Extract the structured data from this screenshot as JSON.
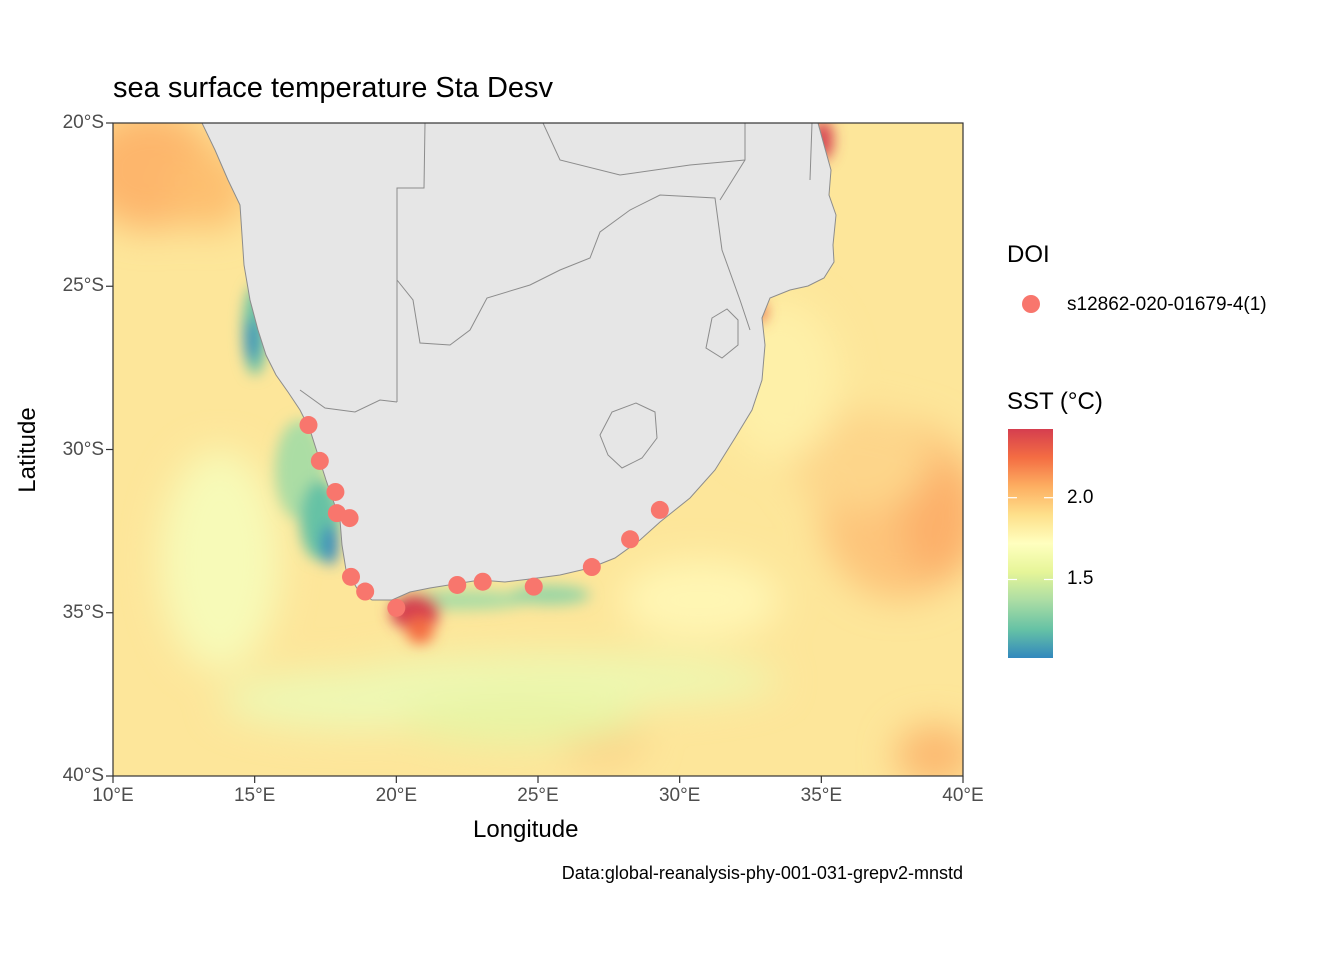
{
  "chart_data": {
    "type": "heatmap",
    "title": "sea surface temperature Sta Desv",
    "xlabel": "Longitude",
    "ylabel": "Latitude",
    "xlim": [
      10,
      40
    ],
    "ylim": [
      -40,
      -20
    ],
    "x_ticks": [
      {
        "value": 10,
        "label": "10°E"
      },
      {
        "value": 15,
        "label": "15°E"
      },
      {
        "value": 20,
        "label": "20°E"
      },
      {
        "value": 25,
        "label": "25°E"
      },
      {
        "value": 30,
        "label": "30°E"
      },
      {
        "value": 35,
        "label": "35°E"
      },
      {
        "value": 40,
        "label": "40°E"
      }
    ],
    "y_ticks": [
      {
        "value": -20,
        "label": "20°S"
      },
      {
        "value": -25,
        "label": "25°S"
      },
      {
        "value": -30,
        "label": "30°S"
      },
      {
        "value": -35,
        "label": "35°S"
      },
      {
        "value": -40,
        "label": "40°S"
      }
    ],
    "caption": "Data:global-reanalysis-phy-001-031-grepv2-mnstd",
    "colorbar": {
      "title": "SST (°C)",
      "min": 1.02,
      "max": 2.42,
      "palette": [
        "#3288bd",
        "#66c2a5",
        "#abdda4",
        "#e6f598",
        "#ffffbf",
        "#fee08b",
        "#fdae61",
        "#f46d43",
        "#d53e4f"
      ],
      "ticks": [
        {
          "value": 1.5,
          "label": "1.5"
        },
        {
          "value": 2.0,
          "label": "2.0"
        }
      ]
    },
    "points_legend": {
      "title": "DOI",
      "entries": [
        {
          "label": "s12862-020-01679-4(1)",
          "color": "#f8766d"
        }
      ]
    },
    "points": [
      {
        "lon": 16.9,
        "lat": -29.25
      },
      {
        "lon": 17.3,
        "lat": -30.35
      },
      {
        "lon": 17.85,
        "lat": -31.3
      },
      {
        "lon": 17.9,
        "lat": -31.95
      },
      {
        "lon": 18.35,
        "lat": -32.1
      },
      {
        "lon": 18.4,
        "lat": -33.9
      },
      {
        "lon": 18.9,
        "lat": -34.35
      },
      {
        "lon": 20.0,
        "lat": -34.85
      },
      {
        "lon": 22.15,
        "lat": -34.15
      },
      {
        "lon": 23.05,
        "lat": -34.05
      },
      {
        "lon": 24.85,
        "lat": -34.2
      },
      {
        "lon": 26.9,
        "lat": -33.6
      },
      {
        "lon": 28.25,
        "lat": -32.75
      },
      {
        "lon": 29.3,
        "lat": -31.85
      }
    ],
    "land_color": "#e6e6e6",
    "border_color": "#8c8c8c"
  }
}
